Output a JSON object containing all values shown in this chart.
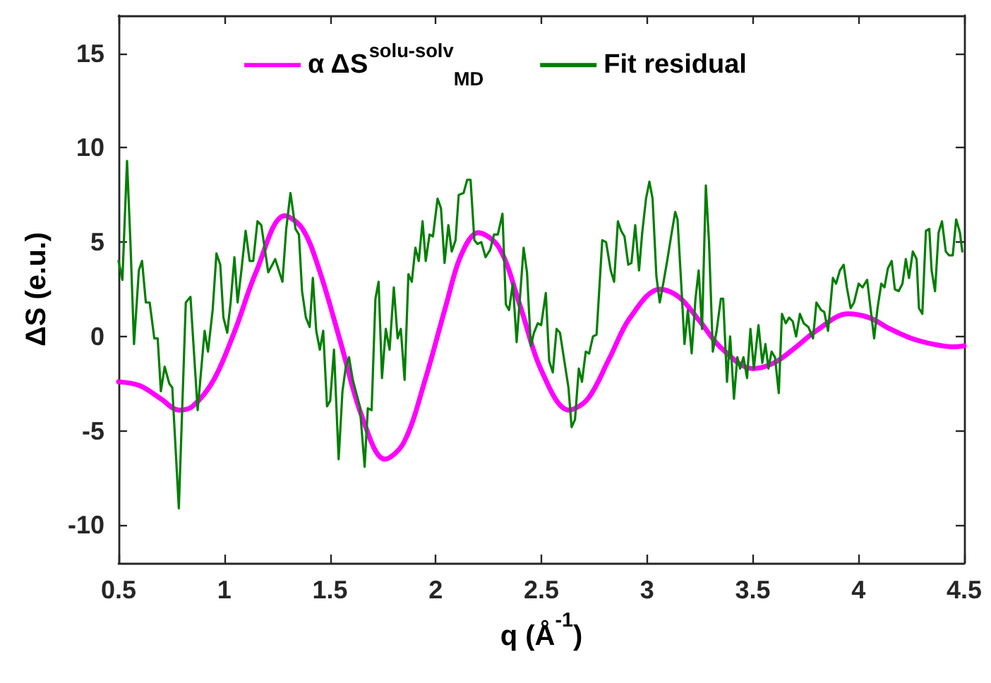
{
  "chart_data": {
    "type": "line",
    "xlabel": "q (Å$^{-1}$)",
    "ylabel": "ΔS (e.u.)",
    "xlim": [
      0.5,
      4.5
    ],
    "xticks": [
      0.5,
      1,
      1.5,
      2,
      2.5,
      3,
      3.5,
      4,
      4.5
    ],
    "ylim": [
      -12,
      17
    ],
    "yticks": [
      -10,
      -5,
      0,
      5,
      10,
      15
    ],
    "grid": false,
    "legend": "top",
    "marker": "none",
    "line_style": "solid",
    "series": [
      {
        "name": "α ΔS$^{solu-solv}$$_{MD}$",
        "color": "#ff00ff",
        "x": [
          0.5,
          0.6,
          0.7,
          0.785,
          0.85,
          0.95,
          1.05,
          1.15,
          1.286,
          1.37,
          1.45,
          1.55,
          1.65,
          1.76,
          1.85,
          1.95,
          2.05,
          2.12,
          2.2,
          2.3,
          2.4,
          2.5,
          2.63,
          2.72,
          2.82,
          2.92,
          3.06,
          3.15,
          3.25,
          3.35,
          3.5,
          3.6,
          3.7,
          3.8,
          3.95,
          4.05,
          4.15,
          4.25,
          4.35,
          4.45,
          4.5
        ],
        "values": [
          -2.4,
          -2.6,
          -3.3,
          -3.9,
          -3.7,
          -2.3,
          0.3,
          3.4,
          6.4,
          5.7,
          3.5,
          -0.3,
          -4.2,
          -6.5,
          -5.6,
          -2.3,
          1.7,
          4.3,
          5.5,
          4.7,
          1.6,
          -1.8,
          -3.9,
          -3.3,
          -1.2,
          1.0,
          2.5,
          2.1,
          0.8,
          -0.6,
          -1.7,
          -1.4,
          -0.6,
          0.3,
          1.2,
          1.0,
          0.4,
          -0.1,
          -0.4,
          -0.55,
          -0.5
        ]
      },
      {
        "name": "Fit residual",
        "color": "#007f00",
        "x": [
          0.5,
          0.518,
          0.54,
          0.556,
          0.573,
          0.596,
          0.611,
          0.629,
          0.647,
          0.669,
          0.685,
          0.7,
          0.718,
          0.74,
          0.754,
          0.785,
          0.818,
          0.84,
          0.874,
          0.907,
          0.923,
          0.945,
          0.963,
          0.981,
          0.996,
          1.014,
          1.03,
          1.048,
          1.063,
          1.081,
          1.101,
          1.12,
          1.137,
          1.157,
          1.175,
          1.208,
          1.241,
          1.275,
          1.293,
          1.313,
          1.337,
          1.353,
          1.368,
          1.386,
          1.404,
          1.419,
          1.435,
          1.452,
          1.468,
          1.486,
          1.501,
          1.519,
          1.541,
          1.559,
          1.575,
          1.59,
          1.608,
          1.641,
          1.664,
          1.679,
          1.697,
          1.715,
          1.73,
          1.746,
          1.764,
          1.782,
          1.802,
          1.82,
          1.835,
          1.853,
          1.871,
          1.887,
          1.904,
          1.92,
          1.938,
          1.953,
          1.971,
          1.987,
          2.009,
          2.025,
          2.042,
          2.06,
          2.076,
          2.094,
          2.109,
          2.132,
          2.149,
          2.165,
          2.183,
          2.198,
          2.216,
          2.236,
          2.258,
          2.276,
          2.294,
          2.316,
          2.332,
          2.347,
          2.365,
          2.383,
          2.399,
          2.416,
          2.432,
          2.45,
          2.465,
          2.483,
          2.499,
          2.521,
          2.537,
          2.554,
          2.572,
          2.588,
          2.61,
          2.628,
          2.643,
          2.659,
          2.677,
          2.692,
          2.71,
          2.726,
          2.744,
          2.761,
          2.788,
          2.806,
          2.828,
          2.844,
          2.862,
          2.877,
          2.893,
          2.911,
          2.926,
          2.944,
          2.962,
          2.977,
          2.995,
          3.011,
          3.026,
          3.044,
          3.06,
          3.078,
          3.095,
          3.115,
          3.133,
          3.144,
          3.16,
          3.177,
          3.193,
          3.211,
          3.229,
          3.244,
          3.26,
          3.278,
          3.293,
          3.311,
          3.329,
          3.349,
          3.36,
          3.378,
          3.393,
          3.411,
          3.427,
          3.44,
          3.456,
          3.473,
          3.489,
          3.505,
          3.527,
          3.545,
          3.56,
          3.574,
          3.589,
          3.605,
          3.623,
          3.638,
          3.656,
          3.672,
          3.689,
          3.705,
          3.723,
          3.741,
          3.763,
          3.785,
          3.801,
          3.823,
          3.838,
          3.856,
          3.879,
          3.894,
          3.912,
          3.93,
          3.945,
          3.963,
          3.979,
          4.001,
          4.019,
          4.041,
          4.057,
          4.074,
          4.09,
          4.108,
          4.123,
          4.139,
          4.157,
          4.172,
          4.19,
          4.208,
          4.224,
          4.239,
          4.257,
          4.275,
          4.286,
          4.302,
          4.319,
          4.335,
          4.346,
          4.362,
          4.379,
          4.395,
          4.413,
          4.428,
          4.446,
          4.462,
          4.48,
          4.491
        ],
        "values": [
          4.0,
          3.0,
          9.3,
          5.0,
          -0.4,
          3.5,
          4.0,
          1.8,
          1.8,
          -0.1,
          -0.1,
          -2.9,
          -1.6,
          -2.5,
          -2.7,
          -9.1,
          1.8,
          2.1,
          -3.9,
          0.3,
          -0.8,
          1.4,
          4.4,
          3.8,
          1.0,
          0.2,
          1.8,
          4.2,
          1.8,
          3.5,
          5.6,
          4.0,
          4.0,
          6.1,
          5.9,
          3.4,
          4.1,
          2.9,
          5.7,
          7.6,
          5.7,
          5.4,
          2.4,
          1.0,
          0.5,
          3.1,
          0.3,
          -0.7,
          0.3,
          -3.7,
          -3.4,
          -0.7,
          -6.5,
          -2.9,
          -1.6,
          -1.1,
          -2.3,
          -3.7,
          -6.9,
          -3.8,
          -3.9,
          2.0,
          2.9,
          -2.2,
          0.4,
          -0.7,
          2.6,
          -0.1,
          0.4,
          -2.3,
          3.3,
          2.9,
          4.7,
          4.0,
          6.1,
          4.0,
          5.4,
          5.3,
          7.3,
          6.8,
          3.9,
          5.9,
          4.5,
          5.1,
          7.5,
          7.6,
          8.3,
          8.3,
          5.1,
          4.9,
          5.0,
          4.2,
          4.6,
          5.4,
          5.4,
          6.5,
          1.7,
          1.4,
          2.8,
          -0.3,
          2.1,
          4.7,
          3.4,
          -0.5,
          0.2,
          0.7,
          0.6,
          2.3,
          -1.3,
          -1.9,
          0.4,
          0.2,
          -1.4,
          -2.7,
          -4.8,
          -4.4,
          -1.7,
          -2.4,
          -0.8,
          -0.9,
          0.0,
          0.1,
          5.1,
          5.0,
          3.5,
          2.9,
          6.1,
          5.6,
          5.3,
          3.8,
          3.9,
          5.9,
          3.5,
          5.5,
          7.3,
          8.2,
          7.3,
          3.2,
          1.8,
          2.9,
          4.0,
          5.4,
          6.6,
          6.2,
          3.1,
          -0.4,
          1.4,
          -0.9,
          2.0,
          3.5,
          0.4,
          8.0,
          5.0,
          -0.8,
          0.3,
          2.0,
          2.0,
          -2.4,
          0.0,
          -3.3,
          -1.1,
          -1.7,
          -1.1,
          -2.2,
          0.4,
          -1.7,
          0.6,
          -1.4,
          -0.4,
          -1.7,
          -0.8,
          -1.1,
          -3.0,
          1.2,
          0.7,
          1.0,
          0.8,
          0.0,
          1.2,
          0.7,
          0.5,
          -0.1,
          1.8,
          1.4,
          1.3,
          0.3,
          3.1,
          2.8,
          3.5,
          3.8,
          2.6,
          1.5,
          1.8,
          2.8,
          2.6,
          3.0,
          1.5,
          -0.1,
          1.5,
          2.8,
          2.6,
          3.6,
          4.0,
          2.5,
          2.4,
          2.8,
          4.1,
          3.1,
          4.5,
          4.1,
          1.5,
          1.2,
          5.6,
          5.7,
          3.5,
          2.4,
          5.5,
          6.1,
          4.5,
          4.3,
          4.3,
          6.2,
          5.5,
          4.5
        ]
      }
    ]
  }
}
